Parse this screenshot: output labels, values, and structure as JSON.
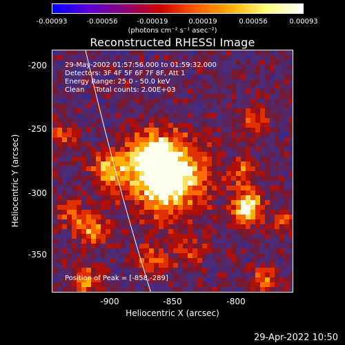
{
  "colorbar": {
    "ticks": [
      "-0.00093",
      "-0.00056",
      "-0.00019",
      "0.00019",
      "0.00056",
      "0.00093"
    ],
    "units_label": "(photons cm⁻² s⁻¹ asec⁻²)"
  },
  "plot": {
    "title": "Reconstructed RHESSI Image",
    "info_lines": [
      "29-May-2002 01:57:56.000 to 01:59:32.000",
      "Detectors: 3F 4F 5F 6F 7F 8F, Att 1",
      "Energy Range: 25.0 - 50.0 keV",
      "Clean     Total counts: 2.00E+03"
    ],
    "peak_label": "Position of Peak = [-858,-289]",
    "x_axis_label": "Heliocentric X (arcsec)",
    "y_axis_label": "Heliocentric Y (arcsec)",
    "x_ticks": [
      "-900",
      "-850",
      "-800"
    ],
    "y_ticks": [
      "-200",
      "-250",
      "-300",
      "-350"
    ]
  },
  "footer": {
    "timestamp": "29-Apr-2022 10:50"
  },
  "colors": {
    "background": "#000000",
    "limb": "#ffffff",
    "colorbar_stops": [
      "#0000ff",
      "#5a00d8",
      "#8a0078",
      "#cc0000",
      "#ff5a00",
      "#ffb000",
      "#ffff7f",
      "#ffffff"
    ]
  }
}
